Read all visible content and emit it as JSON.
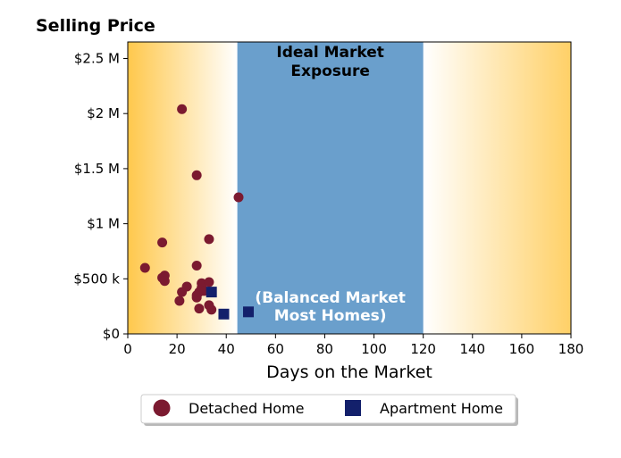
{
  "chart_data": {
    "type": "scatter",
    "ylabel": "Selling Price",
    "xlabel": "Days on the Market",
    "xlim": [
      0,
      180
    ],
    "ylim": [
      0,
      2650000
    ],
    "xticks": [
      0,
      20,
      40,
      60,
      80,
      100,
      120,
      140,
      160,
      180
    ],
    "xtick_labels": [
      "0",
      "20",
      "40",
      "60",
      "80",
      "100",
      "120",
      "140",
      "160",
      "180"
    ],
    "yticks": [
      0,
      500000,
      1000000,
      1500000,
      2000000,
      2500000
    ],
    "ytick_labels": [
      "$0",
      "$500 k",
      "$1 M",
      "$1.5 M",
      "$2 M",
      "$2.5 M"
    ],
    "zones": {
      "ideal": {
        "x_range": [
          44.5,
          120
        ],
        "title_line1": "Ideal Market",
        "title_line2": "Exposure",
        "note_line1": "(Balanced Market",
        "note_line2": "Most Homes)",
        "color": "#6a9fcc"
      },
      "gradient_color": "#ffc84c"
    },
    "series": [
      {
        "name": "Detached Home",
        "marker": "circle",
        "color": "#7b1a30",
        "points": [
          [
            7,
            600000
          ],
          [
            14,
            830000
          ],
          [
            14,
            510000
          ],
          [
            15,
            530000
          ],
          [
            15,
            480000
          ],
          [
            21,
            300000
          ],
          [
            22,
            380000
          ],
          [
            22,
            2040000
          ],
          [
            24,
            430000
          ],
          [
            28,
            1440000
          ],
          [
            28,
            620000
          ],
          [
            28,
            330000
          ],
          [
            28,
            350000
          ],
          [
            29,
            230000
          ],
          [
            29,
            380000
          ],
          [
            30,
            460000
          ],
          [
            30,
            420000
          ],
          [
            31,
            390000
          ],
          [
            33,
            470000
          ],
          [
            33,
            860000
          ],
          [
            33,
            260000
          ],
          [
            34,
            220000
          ],
          [
            45,
            1240000
          ]
        ]
      },
      {
        "name": "Apartment Home",
        "marker": "square",
        "color": "#13206b",
        "points": [
          [
            34,
            380000
          ],
          [
            39,
            180000
          ],
          [
            49,
            200000
          ]
        ]
      }
    ],
    "legend": {
      "position": "bottom-center",
      "entries": [
        "Detached Home",
        "Apartment Home"
      ]
    }
  }
}
